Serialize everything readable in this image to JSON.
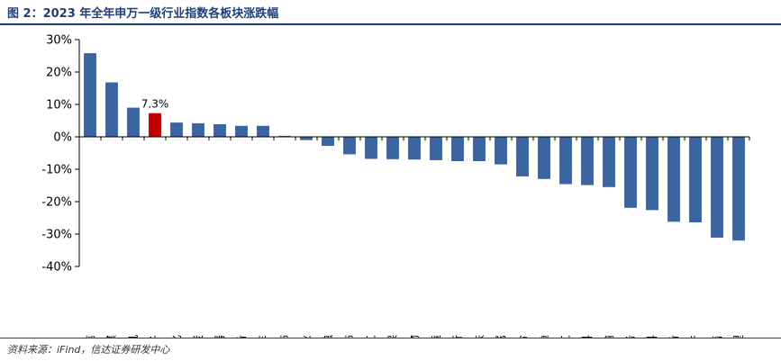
{
  "title": "图 2：2023 年全年申万一级行业指数各板块涨跌幅",
  "source": "资料来源：iFind，信达证券研发中心",
  "colors": {
    "bar": "#3b64a0",
    "highlight": "#c00000",
    "axis": "#000000",
    "title": "#1f3f78"
  },
  "chart_data": {
    "type": "bar",
    "title": "2023 年全年申万一级行业指数各板块涨跌幅",
    "xlabel": "",
    "ylabel": "",
    "ylim": [
      -40,
      30
    ],
    "yticks": [
      30,
      20,
      10,
      0,
      -10,
      -20,
      -30,
      -40
    ],
    "ytick_labels": [
      "30%",
      "20%",
      "10%",
      "0%",
      "-10%",
      "-20%",
      "-30%",
      "-40%"
    ],
    "unit": "%",
    "categories": [
      "通信",
      "传媒",
      "计算机",
      "电子",
      "石油石化",
      "煤炭",
      "家用电器",
      "机械设备",
      "汽车",
      "纺织服饰",
      "公用事业",
      "非银金融",
      "建筑装饰",
      "国防军工",
      "环保",
      "医药生物",
      "轻工制造",
      "银行",
      "钢铁",
      "有色金属",
      "综合",
      "农林牧渔",
      "基础化工",
      "食品饮料",
      "交通运输",
      "社会服务",
      "建筑材料",
      "电力设备",
      "房地产",
      "商贸零售",
      "美容护理"
    ],
    "values": [
      25.8,
      16.8,
      9.0,
      7.3,
      4.4,
      4.2,
      3.9,
      3.4,
      3.4,
      0.3,
      -1.0,
      -2.8,
      -5.4,
      -6.8,
      -6.9,
      -7.0,
      -7.2,
      -7.5,
      -7.5,
      -8.5,
      -12.2,
      -13.0,
      -14.6,
      -14.9,
      -15.5,
      -21.9,
      -22.6,
      -26.2,
      -26.4,
      -31.1,
      -32.0
    ],
    "highlight_index": 3,
    "annotations": [
      {
        "category": "电子",
        "text": "7.3%"
      }
    ]
  }
}
